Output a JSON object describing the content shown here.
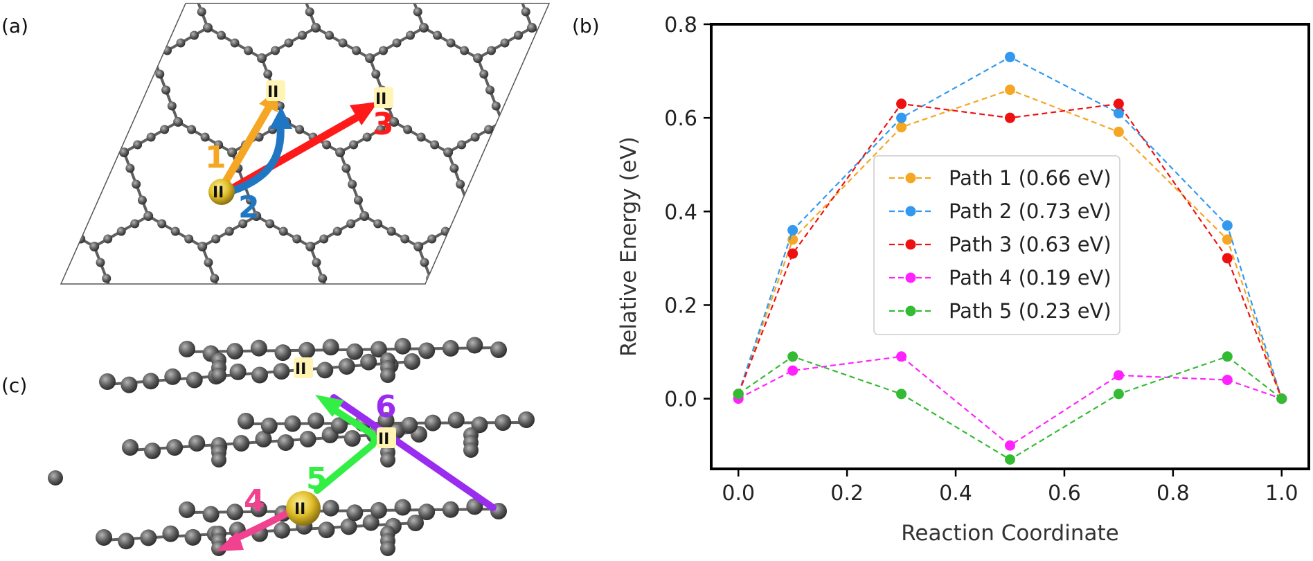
{
  "figure": {
    "panel_a": {
      "letter": "(a)",
      "site_label": "II",
      "target_label_1": "II",
      "target_label_2": "II",
      "path_labels": [
        "1",
        "2",
        "3"
      ]
    },
    "panel_c": {
      "letter": "(c)",
      "site_label": "II",
      "target_label_1": "II",
      "target_label_2": "II",
      "path_labels": [
        "4",
        "5",
        "6"
      ]
    },
    "panel_b_letter": "(b)",
    "colors": {
      "atom": "#5a5a5a",
      "bond": "#5f5f5f",
      "site_gold": "#d9b825",
      "label_highlight": "#fff4b3",
      "path1": "#f5a623",
      "path2": "#1f77c4",
      "path3": "#ff1a1a",
      "path4": "#f0428f",
      "path5": "#33ee44",
      "path6": "#9a2cf0"
    }
  },
  "chart_data": {
    "type": "line",
    "title": "",
    "xlabel": "Reaction Coordinate",
    "ylabel": "Relative Energy (eV)",
    "xlim": [
      -0.05,
      1.05
    ],
    "ylim": [
      -0.15,
      0.8
    ],
    "xticks": [
      0.0,
      0.2,
      0.4,
      0.6,
      0.8,
      1.0
    ],
    "xtick_labels": [
      "0.0",
      "0.2",
      "0.4",
      "0.6",
      "0.8",
      "1.0"
    ],
    "yticks": [
      0.0,
      0.2,
      0.4,
      0.6,
      0.8
    ],
    "ytick_labels": [
      "0.0",
      "0.2",
      "0.4",
      "0.6",
      "0.8"
    ],
    "x": [
      0.0,
      0.1,
      0.3,
      0.5,
      0.7,
      0.9,
      1.0
    ],
    "line_style": "dashed",
    "legend_position": "center",
    "grid": false,
    "series": [
      {
        "name": "Path 1 (0.66 eV)",
        "color": "#f5a623",
        "values": [
          0.01,
          0.34,
          0.58,
          0.66,
          0.57,
          0.34,
          0.0
        ]
      },
      {
        "name": "Path 2 (0.73 eV)",
        "color": "#3399ee",
        "values": [
          0.01,
          0.36,
          0.6,
          0.73,
          0.61,
          0.37,
          0.0
        ]
      },
      {
        "name": "Path 3 (0.63 eV)",
        "color": "#ee1111",
        "values": [
          0.01,
          0.31,
          0.63,
          0.6,
          0.63,
          0.3,
          0.0
        ]
      },
      {
        "name": "Path 4 (0.19 eV)",
        "color": "#ff22ff",
        "values": [
          0.0,
          0.06,
          0.09,
          -0.1,
          0.05,
          0.04,
          0.0
        ]
      },
      {
        "name": "Path 5 (0.23 eV)",
        "color": "#33bb33",
        "values": [
          0.01,
          0.09,
          0.01,
          -0.13,
          0.01,
          0.09,
          0.0
        ]
      }
    ]
  }
}
